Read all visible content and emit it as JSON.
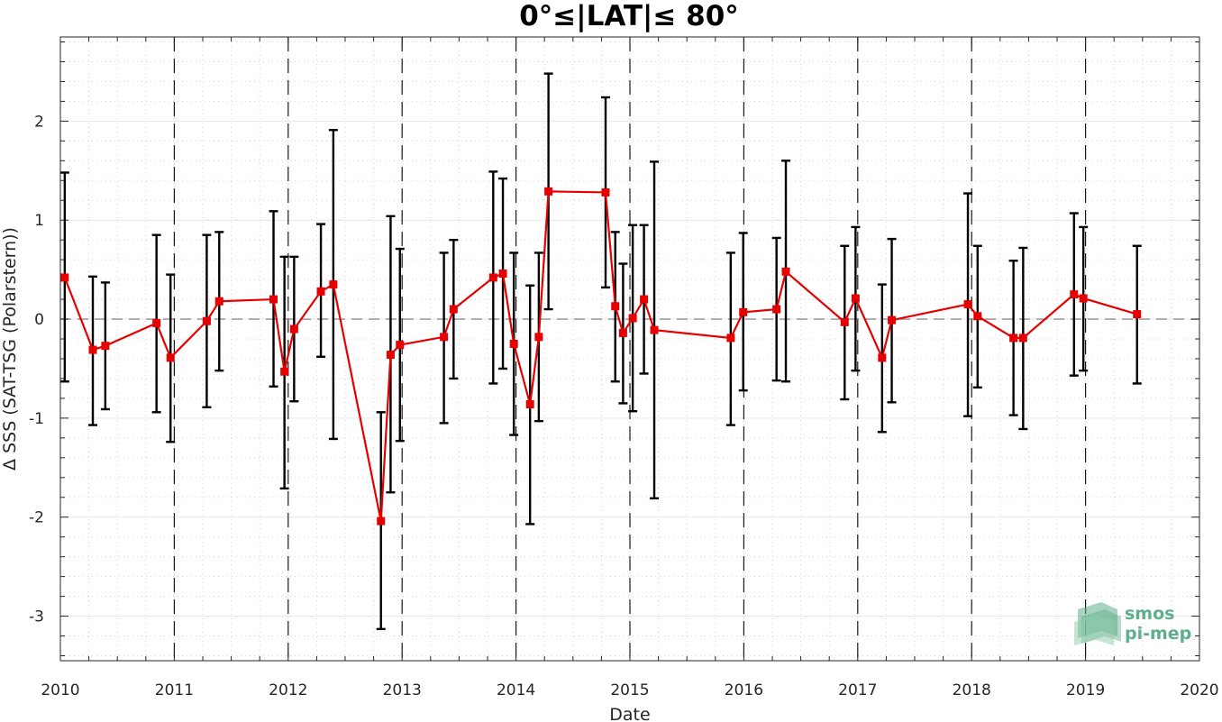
{
  "chart_data": {
    "type": "line",
    "title": "0°≤|LAT|≤ 80°",
    "xlabel": "Date",
    "ylabel": "Δ SSS (SAT-TSG (Polarstern))",
    "xlim": [
      2010,
      2020
    ],
    "ylim": [
      -3.45,
      2.85
    ],
    "x_ticks": [
      "2010",
      "2011",
      "2012",
      "2013",
      "2014",
      "2015",
      "2016",
      "2017",
      "2018",
      "2019",
      "2020"
    ],
    "y_ticks": [
      {
        "value": -3,
        "label": "-3"
      },
      {
        "value": -2,
        "label": "-2"
      },
      {
        "value": -1,
        "label": "-1"
      },
      {
        "value": 0,
        "label": "0"
      },
      {
        "value": 1,
        "label": "1"
      },
      {
        "value": 2,
        "label": "2"
      }
    ],
    "grid": true,
    "year_boundary_lines": [
      "2011",
      "2012",
      "2013",
      "2014",
      "2015",
      "2016",
      "2017",
      "2018",
      "2019"
    ],
    "zero_reference_line": 0,
    "series": [
      {
        "color": "#e60000",
        "marker": "square",
        "errorbar_color": "#000000",
        "points": [
          {
            "x": "2010-01-15",
            "y": 0.42,
            "err_low": -0.63,
            "err_high": 1.48
          },
          {
            "x": "2010-04-15",
            "y": -0.31,
            "err_low": -1.07,
            "err_high": 0.43
          },
          {
            "x": "2010-05-25",
            "y": -0.27,
            "err_low": -0.91,
            "err_high": 0.37
          },
          {
            "x": "2010-11-05",
            "y": -0.04,
            "err_low": -0.94,
            "err_high": 0.85
          },
          {
            "x": "2010-12-20",
            "y": -0.39,
            "err_low": -1.24,
            "err_high": 0.45
          },
          {
            "x": "2011-04-15",
            "y": -0.02,
            "err_low": -0.89,
            "err_high": 0.85
          },
          {
            "x": "2011-05-25",
            "y": 0.18,
            "err_low": -0.52,
            "err_high": 0.88
          },
          {
            "x": "2011-11-15",
            "y": 0.2,
            "err_low": -0.68,
            "err_high": 1.09
          },
          {
            "x": "2011-12-20",
            "y": -0.53,
            "err_low": -1.71,
            "err_high": 0.63
          },
          {
            "x": "2012-01-20",
            "y": -0.1,
            "err_low": -0.83,
            "err_high": 0.63
          },
          {
            "x": "2012-04-15",
            "y": 0.28,
            "err_low": -0.38,
            "err_high": 0.96
          },
          {
            "x": "2012-05-25",
            "y": 0.35,
            "err_low": -1.21,
            "err_high": 1.91
          },
          {
            "x": "2012-10-25",
            "y": -2.04,
            "err_low": -3.13,
            "err_high": -0.94
          },
          {
            "x": "2012-11-25",
            "y": -0.36,
            "err_low": -1.75,
            "err_high": 1.04
          },
          {
            "x": "2012-12-25",
            "y": -0.26,
            "err_low": -1.23,
            "err_high": 0.71
          },
          {
            "x": "2013-05-15",
            "y": -0.18,
            "err_low": -1.05,
            "err_high": 0.67
          },
          {
            "x": "2013-06-15",
            "y": 0.1,
            "err_low": -0.6,
            "err_high": 0.8
          },
          {
            "x": "2013-10-20",
            "y": 0.42,
            "err_low": -0.65,
            "err_high": 1.49
          },
          {
            "x": "2013-11-20",
            "y": 0.46,
            "err_low": -0.5,
            "err_high": 1.42
          },
          {
            "x": "2013-12-25",
            "y": -0.25,
            "err_low": -1.17,
            "err_high": 0.67
          },
          {
            "x": "2014-02-15",
            "y": -0.86,
            "err_low": -2.07,
            "err_high": 0.34
          },
          {
            "x": "2014-03-15",
            "y": -0.18,
            "err_low": -1.03,
            "err_high": 0.67
          },
          {
            "x": "2014-04-15",
            "y": 1.29,
            "err_low": 0.1,
            "err_high": 2.48
          },
          {
            "x": "2014-10-15",
            "y": 1.28,
            "err_low": 0.32,
            "err_high": 2.24
          },
          {
            "x": "2014-11-15",
            "y": 0.13,
            "err_low": -0.63,
            "err_high": 0.88
          },
          {
            "x": "2014-12-10",
            "y": -0.14,
            "err_low": -0.85,
            "err_high": 0.56
          },
          {
            "x": "2015-01-10",
            "y": 0.01,
            "err_low": -0.93,
            "err_high": 0.95
          },
          {
            "x": "2015-02-15",
            "y": 0.2,
            "err_low": -0.55,
            "err_high": 0.95
          },
          {
            "x": "2015-03-20",
            "y": -0.11,
            "err_low": -1.81,
            "err_high": 1.59
          },
          {
            "x": "2015-11-20",
            "y": -0.19,
            "err_low": -1.07,
            "err_high": 0.67
          },
          {
            "x": "2015-12-30",
            "y": 0.07,
            "err_low": -0.72,
            "err_high": 0.87
          },
          {
            "x": "2016-04-15",
            "y": 0.1,
            "err_low": -0.62,
            "err_high": 0.82
          },
          {
            "x": "2016-05-15",
            "y": 0.48,
            "err_low": -0.63,
            "err_high": 1.6
          },
          {
            "x": "2016-11-20",
            "y": -0.03,
            "err_low": -0.81,
            "err_high": 0.74
          },
          {
            "x": "2016-12-25",
            "y": 0.21,
            "err_low": -0.52,
            "err_high": 0.93
          },
          {
            "x": "2017-03-20",
            "y": -0.39,
            "err_low": -1.14,
            "err_high": 0.35
          },
          {
            "x": "2017-04-20",
            "y": -0.01,
            "err_low": -0.84,
            "err_high": 0.81
          },
          {
            "x": "2017-12-20",
            "y": 0.15,
            "err_low": -0.98,
            "err_high": 1.27
          },
          {
            "x": "2018-01-20",
            "y": 0.03,
            "err_low": -0.69,
            "err_high": 0.74
          },
          {
            "x": "2018-05-15",
            "y": -0.19,
            "err_low": -0.97,
            "err_high": 0.59
          },
          {
            "x": "2018-06-15",
            "y": -0.19,
            "err_low": -1.11,
            "err_high": 0.72
          },
          {
            "x": "2018-11-25",
            "y": 0.25,
            "err_low": -0.57,
            "err_high": 1.07
          },
          {
            "x": "2018-12-25",
            "y": 0.21,
            "err_low": -0.52,
            "err_high": 0.93
          },
          {
            "x": "2019-06-15",
            "y": 0.05,
            "err_low": -0.65,
            "err_high": 0.74
          }
        ]
      }
    ]
  },
  "logo": {
    "line1": "smos",
    "line2": "pi-mep",
    "color": "#5fae8c"
  }
}
